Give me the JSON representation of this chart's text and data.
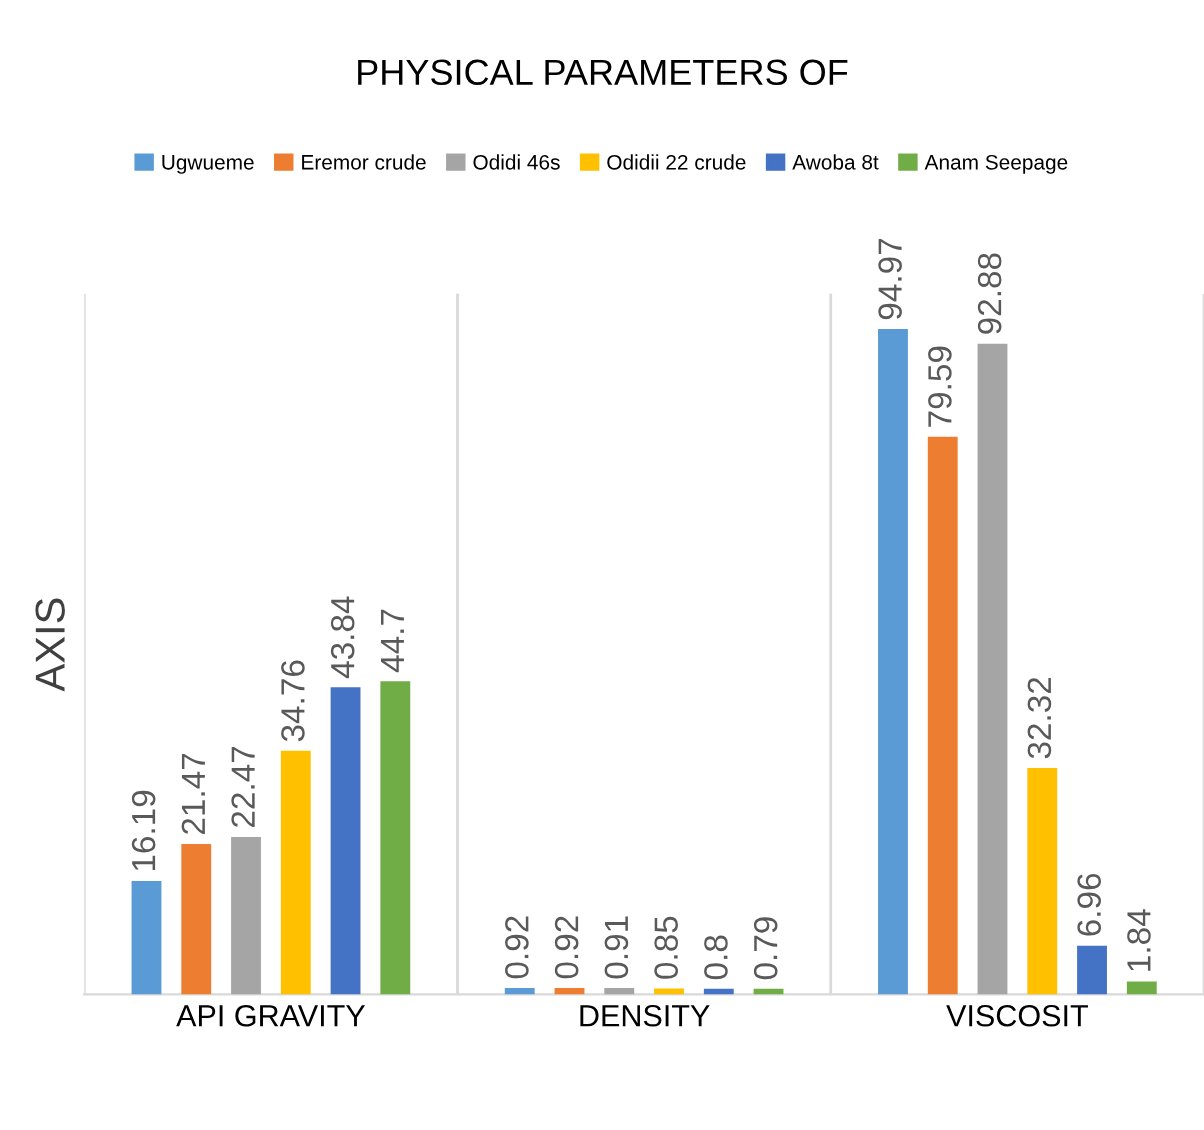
{
  "chart_data": {
    "type": "bar",
    "title": "PHYSICAL PARAMETERS OF",
    "ylabel": "AXIS",
    "categories": [
      "API GRAVITY",
      "DENSITY",
      "VISCOSIT"
    ],
    "series": [
      {
        "name": "Ugwueme",
        "color": "#5b9bd5",
        "values": [
          16.19,
          0.92,
          94.97
        ]
      },
      {
        "name": "Eremor crude",
        "color": "#ed7d31",
        "values": [
          21.47,
          0.92,
          79.59
        ]
      },
      {
        "name": "Odidi 46s",
        "color": "#a5a5a5",
        "values": [
          22.47,
          0.91,
          92.88
        ]
      },
      {
        "name": "Odidii 22 crude",
        "color": "#ffc000",
        "values": [
          34.76,
          0.85,
          32.32
        ]
      },
      {
        "name": "Awoba 8t",
        "color": "#4472c4",
        "values": [
          43.84,
          0.8,
          6.96
        ]
      },
      {
        "name": "Anam Seepage",
        "color": "#70ad47",
        "values": [
          44.7,
          0.79,
          1.84
        ]
      }
    ],
    "ylim": [
      0,
      100
    ],
    "tick_labels": "x",
    "data_labels": true,
    "grid": "x",
    "legend": "top"
  }
}
